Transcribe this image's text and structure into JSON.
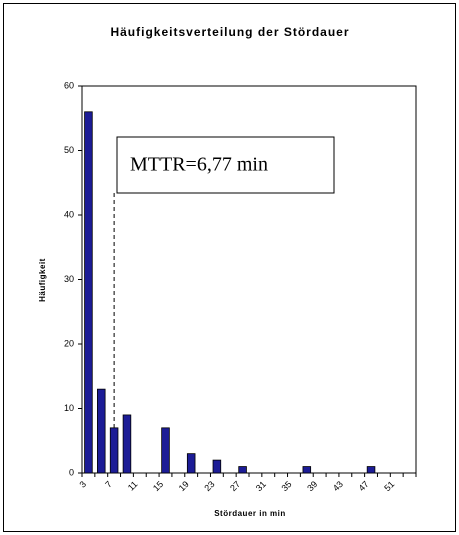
{
  "chart_data": {
    "type": "bar",
    "title": "Häufigkeitsverteilung der Stördauer",
    "x_label": "Stördauer in min",
    "y_label": "Häufigkeit",
    "categories": [
      "3",
      null,
      "7",
      null,
      "11",
      null,
      "15",
      null,
      "19",
      null,
      "23",
      null,
      "27",
      null,
      "31",
      null,
      "35",
      null,
      "39",
      null,
      "43",
      null,
      "47",
      null,
      "51",
      null
    ],
    "values": [
      56,
      13,
      7,
      9,
      0,
      0,
      7,
      0,
      3,
      0,
      2,
      0,
      1,
      0,
      0,
      0,
      0,
      1,
      0,
      0,
      0,
      0,
      1,
      0,
      0,
      0
    ],
    "color": "#1c1c96",
    "ylim": [
      0,
      60
    ],
    "yticks": [
      0,
      10,
      20,
      30,
      40,
      50,
      60
    ],
    "grid": false,
    "annotation": "MTTR=6,77 min"
  }
}
